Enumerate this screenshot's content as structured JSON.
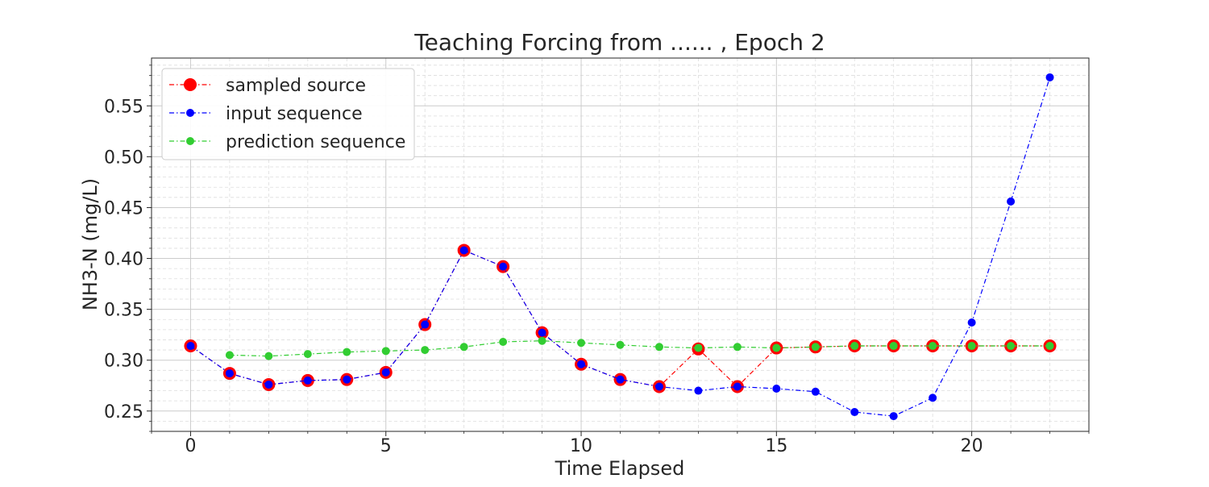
{
  "chart_data": {
    "type": "line",
    "title": "Teaching Forcing from ...... , Epoch 2",
    "xlabel": "Time Elapsed",
    "ylabel": "NH3-N (mg/L)",
    "xlim": [
      -1,
      23
    ],
    "ylim": [
      0.23,
      0.597
    ],
    "xticks": [
      0,
      5,
      10,
      15,
      20
    ],
    "xtick_labels": [
      "0",
      "5",
      "10",
      "15",
      "20"
    ],
    "yticks": [
      0.25,
      0.3,
      0.35,
      0.4,
      0.45,
      0.5,
      0.55
    ],
    "ytick_labels": [
      "0.25",
      "0.30",
      "0.35",
      "0.40",
      "0.45",
      "0.50",
      "0.55"
    ],
    "grid": true,
    "minor_grid": true,
    "legend_position": "top-left",
    "series": [
      {
        "name": "sampled source",
        "color": "#ff0000",
        "x": [
          0,
          1,
          2,
          3,
          4,
          5,
          6,
          7,
          8,
          9,
          10,
          11,
          12,
          13,
          14,
          15,
          16,
          17,
          18,
          19,
          20,
          21,
          22
        ],
        "y": [
          0.314,
          0.287,
          0.276,
          0.28,
          0.281,
          0.288,
          0.335,
          0.408,
          0.392,
          0.327,
          0.296,
          0.281,
          0.274,
          0.311,
          0.274,
          0.312,
          0.313,
          0.314,
          0.314,
          0.314,
          0.314,
          0.314,
          0.314
        ]
      },
      {
        "name": "input sequence",
        "color": "#0000ff",
        "x": [
          0,
          1,
          2,
          3,
          4,
          5,
          6,
          7,
          8,
          9,
          10,
          11,
          12,
          13,
          14,
          15,
          16,
          17,
          18,
          19,
          20,
          21,
          22
        ],
        "y": [
          0.314,
          0.287,
          0.276,
          0.28,
          0.281,
          0.288,
          0.335,
          0.408,
          0.392,
          0.327,
          0.296,
          0.281,
          0.274,
          0.27,
          0.274,
          0.272,
          0.269,
          0.249,
          0.245,
          0.263,
          0.337,
          0.456,
          0.578
        ]
      },
      {
        "name": "prediction sequence",
        "color": "#32cd32",
        "x": [
          1,
          2,
          3,
          4,
          5,
          6,
          7,
          8,
          9,
          10,
          11,
          12,
          13,
          14,
          15,
          16,
          17,
          18,
          19,
          20,
          21,
          22
        ],
        "y": [
          0.305,
          0.304,
          0.306,
          0.308,
          0.309,
          0.31,
          0.313,
          0.318,
          0.319,
          0.317,
          0.315,
          0.313,
          0.312,
          0.313,
          0.312,
          0.313,
          0.314,
          0.314,
          0.314,
          0.314,
          0.314,
          0.314
        ]
      }
    ]
  }
}
